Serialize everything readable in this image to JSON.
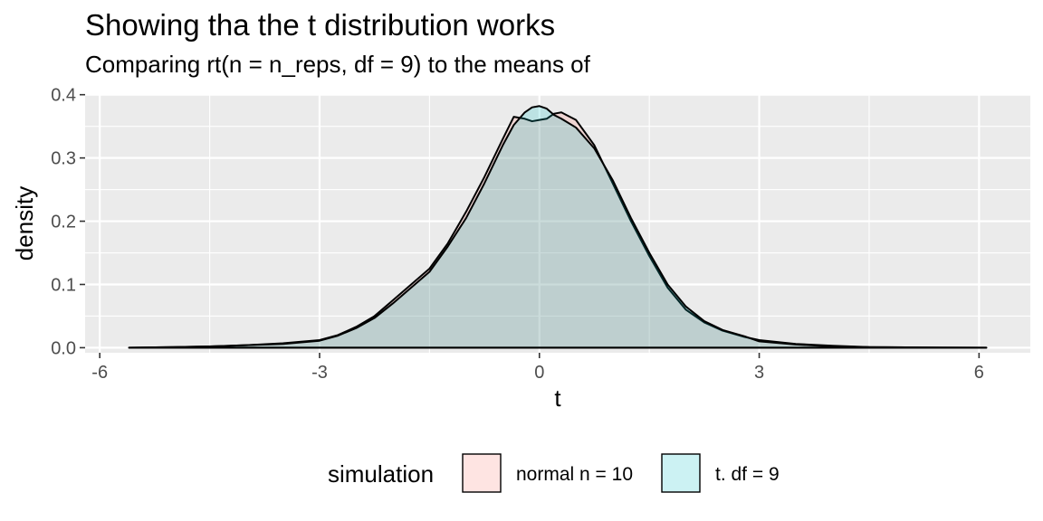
{
  "chart_data": {
    "type": "area",
    "title": "Showing tha the t distribution works",
    "subtitle": "Comparing rt(n = n_reps, df = 9) to the means of",
    "xlabel": "t",
    "ylabel": "density",
    "xlim": [
      -6.2,
      6.7
    ],
    "ylim": [
      -0.008,
      0.401
    ],
    "x_ticks": [
      -6,
      -3,
      0,
      3,
      6
    ],
    "y_ticks": [
      0.0,
      0.1,
      0.2,
      0.3,
      0.4
    ],
    "x_tick_labels": [
      "-6",
      "-3",
      "0",
      "3",
      "6"
    ],
    "y_tick_labels": [
      "0.0",
      "0.1",
      "0.2",
      "0.3",
      "0.4"
    ],
    "grid": true,
    "legend": {
      "title": "simulation",
      "position": "bottom"
    },
    "series": [
      {
        "name": "normal n = 10",
        "color": "#F8766D",
        "x": [
          -5.6,
          -5.0,
          -4.5,
          -4.0,
          -3.5,
          -3.0,
          -2.75,
          -2.5,
          -2.25,
          -2.0,
          -1.8,
          -1.5,
          -1.25,
          -1.0,
          -0.75,
          -0.5,
          -0.35,
          -0.2,
          -0.1,
          0.0,
          0.1,
          0.2,
          0.3,
          0.5,
          0.75,
          1.0,
          1.25,
          1.5,
          1.75,
          2.0,
          2.25,
          2.5,
          2.8,
          3.0,
          3.5,
          4.0,
          4.5,
          5.0,
          5.5,
          6.1
        ],
        "values": [
          0.0,
          0.001,
          0.002,
          0.004,
          0.007,
          0.012,
          0.02,
          0.033,
          0.05,
          0.075,
          0.095,
          0.125,
          0.165,
          0.215,
          0.27,
          0.33,
          0.365,
          0.362,
          0.358,
          0.36,
          0.362,
          0.37,
          0.372,
          0.36,
          0.32,
          0.26,
          0.2,
          0.145,
          0.095,
          0.06,
          0.04,
          0.027,
          0.017,
          0.012,
          0.006,
          0.003,
          0.001,
          0.0005,
          0.0002,
          0.0
        ]
      },
      {
        "name": "t. df = 9",
        "color": "#00BFC4",
        "x": [
          -5.6,
          -5.0,
          -4.5,
          -4.0,
          -3.5,
          -3.0,
          -2.75,
          -2.5,
          -2.25,
          -2.0,
          -1.8,
          -1.5,
          -1.25,
          -1.0,
          -0.75,
          -0.5,
          -0.35,
          -0.2,
          -0.1,
          0.0,
          0.1,
          0.2,
          0.3,
          0.5,
          0.75,
          1.0,
          1.25,
          1.5,
          1.75,
          2.0,
          2.25,
          2.5,
          2.8,
          3.0,
          3.5,
          4.0,
          4.5,
          5.0,
          5.5,
          6.1
        ],
        "values": [
          0.0,
          0.001,
          0.002,
          0.004,
          0.006,
          0.011,
          0.019,
          0.031,
          0.047,
          0.07,
          0.09,
          0.12,
          0.16,
          0.205,
          0.26,
          0.32,
          0.352,
          0.372,
          0.38,
          0.382,
          0.378,
          0.368,
          0.362,
          0.348,
          0.315,
          0.265,
          0.205,
          0.15,
          0.1,
          0.065,
          0.042,
          0.028,
          0.018,
          0.01,
          0.005,
          0.002,
          0.001,
          0.0005,
          0.0002,
          0.0
        ]
      }
    ]
  }
}
